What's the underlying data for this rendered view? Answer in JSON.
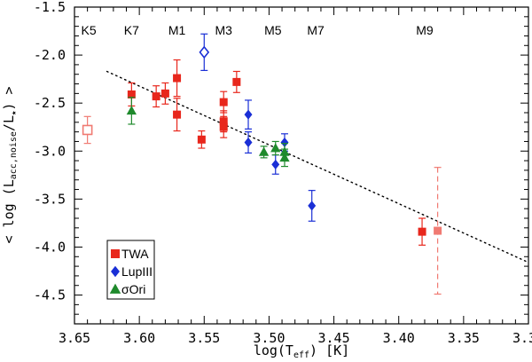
{
  "chart_data": {
    "type": "scatter",
    "xlabel": "log(T",
    "xlabel_sub": "eff",
    "xlabel_tail": ") [K]",
    "ylabel": "< log (L",
    "ylabel_sub": "acc,noise",
    "ylabel_mid": "/L",
    "ylabel_sub2": "★",
    "ylabel_tail": ") >",
    "xlim": [
      3.65,
      3.3
    ],
    "ylim": [
      -4.8,
      -1.5
    ],
    "xticks": [
      3.65,
      3.6,
      3.55,
      3.5,
      3.45,
      3.4,
      3.35,
      3.3
    ],
    "xtick_labels": [
      "3.65",
      "3.60",
      "3.55",
      "3.50",
      "3.45",
      "3.40",
      "3.35",
      "3.30"
    ],
    "yticks": [
      -1.5,
      -2.0,
      -2.5,
      -3.0,
      -3.5,
      -4.0,
      -4.5
    ],
    "ytick_labels": [
      "-1.5",
      "-2.0",
      "-2.5",
      "-3.0",
      "-3.5",
      "-4.0",
      "-4.5"
    ],
    "spectral_types": [
      {
        "label": "K5",
        "x": 3.639
      },
      {
        "label": "K7",
        "x": 3.606
      },
      {
        "label": "M1",
        "x": 3.571
      },
      {
        "label": "M3",
        "x": 3.535
      },
      {
        "label": "M5",
        "x": 3.497
      },
      {
        "label": "M7",
        "x": 3.464
      },
      {
        "label": "M9",
        "x": 3.38
      }
    ],
    "fit_line": {
      "x": [
        3.625,
        3.3
      ],
      "y": [
        -2.17,
        -4.16
      ],
      "style": "dotted"
    },
    "series": [
      {
        "name": "TWA",
        "marker": "square",
        "color": "#e8271c",
        "points": [
          {
            "x": 3.64,
            "y": -2.78,
            "err": 0.14,
            "open": true,
            "faint": true
          },
          {
            "x": 3.606,
            "y": -2.41,
            "err": 0.12
          },
          {
            "x": 3.587,
            "y": -2.43,
            "err": 0.11
          },
          {
            "x": 3.58,
            "y": -2.4,
            "err": 0.11
          },
          {
            "x": 3.571,
            "y": -2.24,
            "err": 0.19
          },
          {
            "x": 3.571,
            "y": -2.62,
            "err": 0.17
          },
          {
            "x": 3.552,
            "y": -2.88,
            "err": 0.09
          },
          {
            "x": 3.535,
            "y": -2.49,
            "err": 0.11
          },
          {
            "x": 3.535,
            "y": -2.69,
            "err": 0.11
          },
          {
            "x": 3.535,
            "y": -2.75,
            "err": 0.11
          },
          {
            "x": 3.525,
            "y": -2.28,
            "err": 0.11
          },
          {
            "x": 3.382,
            "y": -3.84,
            "err": 0.14
          },
          {
            "x": 3.37,
            "y": -3.83,
            "err": 0.66,
            "faint": true,
            "dashed": true
          }
        ]
      },
      {
        "name": "LupIII",
        "marker": "diamond",
        "color": "#1a2fd6",
        "points": [
          {
            "x": 3.55,
            "y": -1.97,
            "err": 0.19,
            "open": true
          },
          {
            "x": 3.516,
            "y": -2.62,
            "err": 0.15
          },
          {
            "x": 3.516,
            "y": -2.91,
            "err": 0.11
          },
          {
            "x": 3.495,
            "y": -3.14,
            "err": 0.1
          },
          {
            "x": 3.488,
            "y": -2.91,
            "err": 0.09
          },
          {
            "x": 3.467,
            "y": -3.57,
            "err": 0.16
          }
        ]
      },
      {
        "name": "σOri",
        "marker": "triangle",
        "color": "#1f8a2c",
        "points": [
          {
            "x": 3.606,
            "y": -2.58,
            "err": 0.14
          },
          {
            "x": 3.504,
            "y": -3.01,
            "err": 0.06
          },
          {
            "x": 3.495,
            "y": -2.97,
            "err": 0.07
          },
          {
            "x": 3.488,
            "y": -3.01,
            "err": 0.09
          },
          {
            "x": 3.488,
            "y": -3.07,
            "err": 0.09
          }
        ]
      }
    ],
    "legend": {
      "placement": "bottom-left"
    }
  }
}
